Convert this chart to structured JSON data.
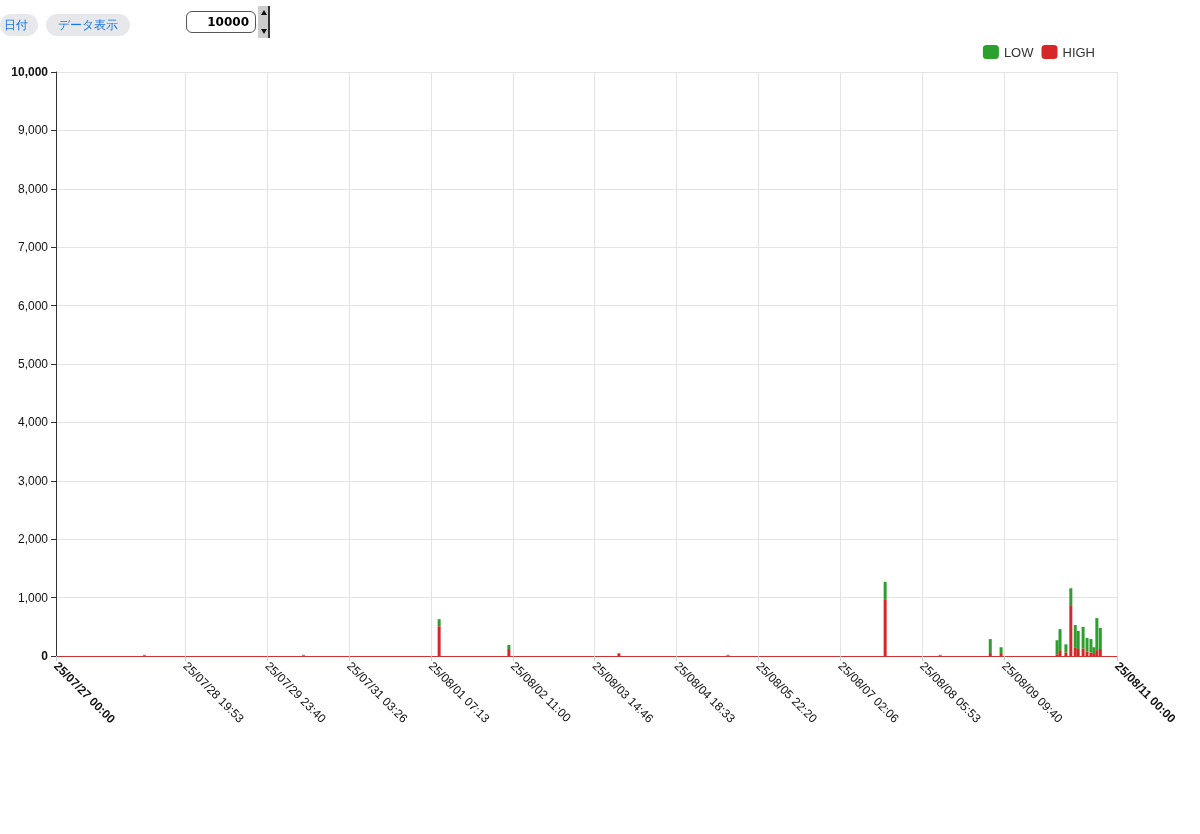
{
  "chart_data": {
    "type": "bar",
    "annotations": [
      "日付",
      "データ表示",
      "10000"
    ],
    "x": [
      "--07-28T06:00",
      "--07-30T12:00",
      "--08-01T10:00",
      "--08-02T09:40",
      "--08-03T23:00",
      "--08-05T12:00",
      "--08-07T17:20",
      "--08-08T12:00",
      "--08-09T05:00",
      "--08-09T08:40",
      "--08-10T03:40",
      "--08-10T04:40",
      "--08-10T06:40",
      "--08-10T08:20",
      "--08-10T09:50",
      "--08-10T10:50",
      "--08-10T12:30",
      "--08-10T13:50",
      "--08-10T15:10",
      "--08-10T16:10",
      "--08-10T17:10",
      "--08-10T18:20"
    ],
    "series": [
      {
        "name": "HIGH",
        "color": "#d62728",
        "values": [
          10,
          10,
          510,
          120,
          40,
          10,
          960,
          10,
          50,
          50,
          30,
          100,
          60,
          870,
          150,
          120,
          130,
          80,
          60,
          50,
          100,
          120
        ]
      },
      {
        "name": "LOW",
        "color": "#2ca02c",
        "values": [
          10,
          10,
          120,
          70,
          10,
          10,
          310,
          10,
          240,
          100,
          240,
          360,
          140,
          290,
          380,
          310,
          370,
          230,
          230,
          100,
          550,
          360
        ]
      }
    ],
    "stacked": true,
    "xlim": [
      "--07-27T00:00",
      "--08-11T00:00"
    ],
    "xticks": [
      {
        "value": "--07-27T00:00",
        "label": "25/07/27 00:00"
      },
      {
        "value": "--07-28T19:53",
        "label": "25/07/28 19:53"
      },
      {
        "value": "--07-29T23:40",
        "label": "25/07/29 23:40"
      },
      {
        "value": "--07-31T03:26",
        "label": "25/07/31 03:26"
      },
      {
        "value": "--08-01T07:13",
        "label": "25/08/01 07:13"
      },
      {
        "value": "--08-02T11:00",
        "label": "25/08/02 11:00"
      },
      {
        "value": "--08-03T14:46",
        "label": "25/08/03 14:46"
      },
      {
        "value": "--08-04T18:33",
        "label": "25/08/04 18:33"
      },
      {
        "value": "--08-05T22:20",
        "label": "25/08/05 22:20"
      },
      {
        "value": "--08-07T02:06",
        "label": "25/08/07 02:06"
      },
      {
        "value": "--08-08T05:53",
        "label": "25/08/08 05:53"
      },
      {
        "value": "--08-09T09:40",
        "label": "25/08/09 09:40"
      },
      {
        "value": "--08-11T00:00",
        "label": "25/08/11 00:00"
      }
    ],
    "ylim": [
      0,
      10000
    ],
    "yticks": [
      0,
      {
        "value": 1000,
        "label": "1,000"
      },
      {
        "value": 2000,
        "label": "2,000"
      },
      {
        "value": 3000,
        "label": "3,000"
      },
      {
        "value": 4000,
        "label": "4,000"
      },
      {
        "value": 5000,
        "label": "5,000"
      },
      {
        "value": 6000,
        "label": "6,000"
      },
      {
        "value": 7000,
        "label": "7,000"
      },
      {
        "value": 8000,
        "label": "8,000"
      },
      {
        "value": 9000,
        "label": "9,000"
      },
      {
        "value": 10000,
        "label": "10,000"
      }
    ],
    "grid": true,
    "legend": "top right"
  }
}
